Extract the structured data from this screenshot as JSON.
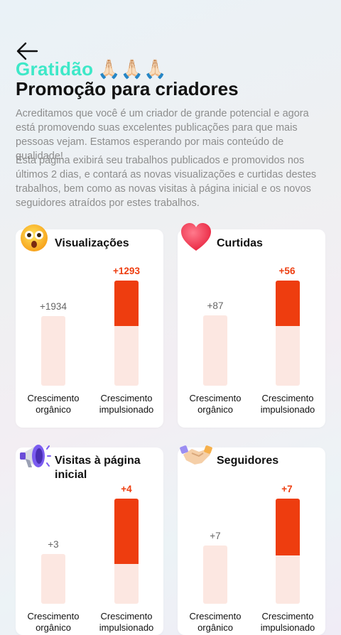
{
  "header": {
    "back_icon": "arrow-left-icon",
    "gratidao": "Gratidão",
    "hands": "🙏🏻🙏🏻🙏🏻",
    "title": "Promoção para criadores",
    "description_1": "Acreditamos que você é um criador de grande potencial e agora está promovendo suas excelentes publicações para que mais pessoas vejam. Estamos esperando por mais conteúdo de qualidade!",
    "description_2": "Esta página exibirá seu trabalhos publicados e promovidos nos últimos 2 dias, e contará as novas visualizações e curtidas destes trabalhos, bem como as novas visitas à página inicial e os novos seguidores atraídos por estes trabalhos."
  },
  "colors": {
    "accent": "#3ee8c8",
    "boost": "#ee3d0f",
    "bar_bg": "#fce7e1"
  },
  "cards": [
    {
      "title": "Visualizações",
      "icon": "astonished-face-icon",
      "organic_value": "+1934",
      "boost_value": "+1293",
      "organic_label": "Crescimento orgânico",
      "boost_label": "Crescimento impulsionado"
    },
    {
      "title": "Curtidas",
      "icon": "heart-icon",
      "organic_value": "+87",
      "boost_value": "+56",
      "organic_label": "Crescimento orgânico",
      "boost_label": "Crescimento impulsionado"
    },
    {
      "title": "Visitas à página inicial",
      "icon": "megaphone-icon",
      "organic_value": "+3",
      "boost_value": "+4",
      "organic_label": "Crescimento orgânico",
      "boost_label": "Crescimento impulsionado"
    },
    {
      "title": "Seguidores",
      "icon": "handshake-icon",
      "organic_value": "+7",
      "boost_value": "+7",
      "organic_label": "Crescimento orgânico",
      "boost_label": "Crescimento impulsionado"
    }
  ]
}
